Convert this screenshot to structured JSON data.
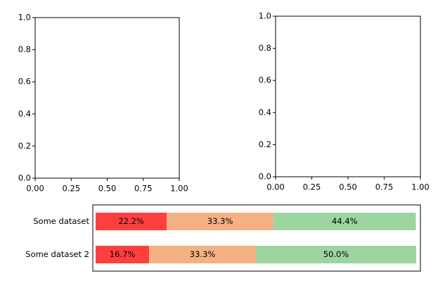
{
  "chart_data": [
    {
      "type": "axes",
      "xlim": [
        0,
        1
      ],
      "ylim": [
        0,
        1
      ],
      "xticks": [
        {
          "value": 0,
          "label": "0.00"
        },
        0.25,
        {
          "value": 0.5,
          "label": "0.50"
        },
        0.75,
        {
          "value": 1,
          "label": "1.00"
        }
      ],
      "yticks": [
        {
          "value": 0,
          "label": "0.0"
        },
        0.2,
        0.4,
        0.6,
        0.8,
        {
          "value": 1,
          "label": "1.0"
        }
      ]
    },
    {
      "type": "axes",
      "xlim": [
        0,
        1
      ],
      "ylim": [
        0,
        1
      ],
      "xticks": [
        {
          "value": 0,
          "label": "0.00"
        },
        0.25,
        {
          "value": 0.5,
          "label": "0.50"
        },
        0.75,
        {
          "value": 1,
          "label": "1.00"
        }
      ],
      "yticks": [
        {
          "value": 0,
          "label": "0.0"
        },
        0.2,
        0.4,
        0.6,
        0.8,
        {
          "value": 1,
          "label": "1.0"
        }
      ]
    },
    {
      "type": "stacked-barh",
      "categories": [
        "Some dataset",
        "Some dataset 2"
      ],
      "xlim": [
        0,
        100
      ],
      "series": [
        {
          "color": "#ff3f3f",
          "values": [
            22.2,
            16.7
          ],
          "value_labels": [
            "22.2%",
            "16.7%"
          ]
        },
        {
          "color": "#f4b183",
          "values": [
            33.3,
            33.3
          ],
          "value_labels": [
            "33.3%",
            "33.3%"
          ]
        },
        {
          "color": "#9dd5a1",
          "values": [
            44.4,
            50.0
          ],
          "value_labels": [
            "44.4%",
            "50.0%"
          ]
        }
      ]
    }
  ]
}
